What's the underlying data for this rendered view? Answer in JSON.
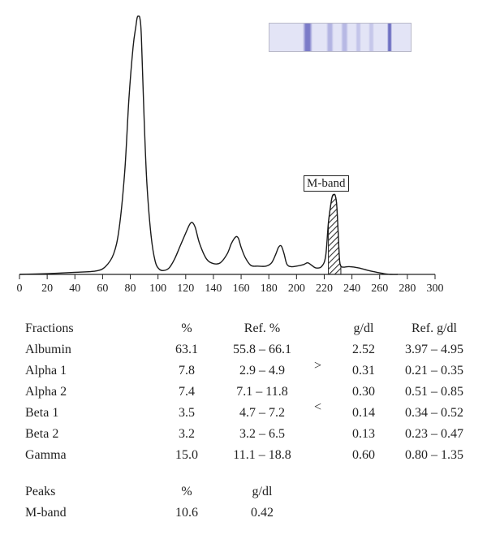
{
  "chart_data": {
    "type": "line",
    "xlabel": "",
    "ylabel": "",
    "xlim": [
      0,
      300
    ],
    "x_ticks": [
      0,
      20,
      40,
      60,
      80,
      100,
      120,
      140,
      160,
      180,
      200,
      220,
      240,
      260,
      280,
      300
    ],
    "grid": false,
    "series": [
      {
        "x": [
          0,
          20,
          40,
          55,
          62,
          68,
          72,
          76,
          79,
          82,
          84,
          85,
          86,
          87,
          88,
          90,
          92,
          95,
          98,
          101,
          104,
          108,
          112,
          116,
          120,
          123,
          125,
          127,
          130,
          135,
          140,
          145,
          150,
          153,
          156,
          158,
          160,
          163,
          167,
          172,
          178,
          182,
          185,
          187,
          189,
          191,
          193,
          196,
          200,
          205,
          208,
          211,
          214,
          218,
          221,
          223,
          225,
          226,
          227,
          228,
          229,
          230,
          231,
          232,
          234,
          238,
          245,
          252,
          258,
          263,
          268,
          273
        ],
        "y": [
          0,
          0.3,
          0.8,
          1.3,
          3,
          8,
          18,
          40,
          68,
          88,
          96,
          99.5,
          100,
          99,
          92,
          60,
          35,
          15,
          5,
          2,
          1.5,
          2.5,
          6,
          11,
          16,
          19.5,
          20,
          18,
          12,
          6,
          4.2,
          4.5,
          8,
          12,
          14.5,
          14,
          10.5,
          6.5,
          3.5,
          3.2,
          3.2,
          4.5,
          7.8,
          10.5,
          11,
          8,
          4,
          3,
          3.2,
          3.8,
          4.5,
          3.5,
          2.5,
          3,
          7,
          20,
          28,
          30.5,
          31,
          30.5,
          27,
          17,
          6,
          3.2,
          2.8,
          3,
          2.5,
          1.5,
          0.8,
          0.3,
          0,
          0
        ]
      }
    ],
    "shaded_region": {
      "name": "M-band",
      "x": [
        222,
        232
      ]
    }
  },
  "annotation": {
    "label": "M-band"
  },
  "gel": {
    "background": "#e3e4f6",
    "bands": [
      {
        "center": 0.27,
        "width": 0.07,
        "color": "#7b7bc8"
      },
      {
        "center": 0.43,
        "width": 0.05,
        "color": "#b3b4e2"
      },
      {
        "center": 0.53,
        "width": 0.05,
        "color": "#b7b8e4"
      },
      {
        "center": 0.63,
        "width": 0.04,
        "color": "#c4c5ea"
      },
      {
        "center": 0.72,
        "width": 0.04,
        "color": "#c6c7ea"
      },
      {
        "center": 0.85,
        "width": 0.03,
        "color": "#6f70c2"
      }
    ]
  },
  "fractions_table": {
    "headers": [
      "Fractions",
      "%",
      "Ref. %",
      "g/dl",
      "Ref. g/dl"
    ],
    "rows": [
      [
        "Albumin",
        "63.1",
        "55.8 – 66.1",
        "2.52",
        "3.97 – 4.95"
      ],
      [
        "Alpha 1",
        "7.8",
        "2.9 – 4.9",
        "0.31",
        "0.21 – 0.35"
      ],
      [
        "Alpha 2",
        "7.4",
        "7.1 – 11.8",
        "0.30",
        "0.51 – 0.85"
      ],
      [
        "Beta 1",
        "3.5",
        "4.7 – 7.2",
        "0.14",
        "0.34 – 0.52"
      ],
      [
        "Beta 2",
        "3.2",
        "3.2 – 6.5",
        "0.13",
        "0.23 – 0.47"
      ],
      [
        "Gamma",
        "15.0",
        "11.1 – 18.8",
        "0.60",
        "0.80 – 1.35"
      ]
    ],
    "symbols": [
      ">",
      "<"
    ]
  },
  "peaks_table": {
    "headers": [
      "Peaks",
      "%",
      "g/dl"
    ],
    "rows": [
      [
        "M-band",
        "10.6",
        "0.42"
      ]
    ]
  }
}
